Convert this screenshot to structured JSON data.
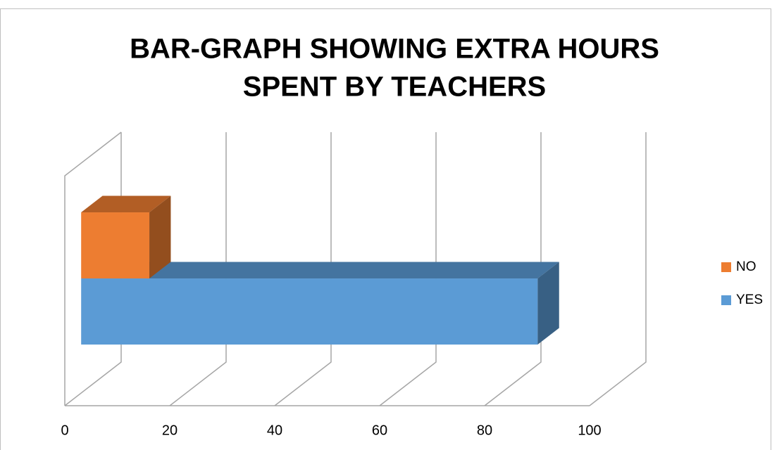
{
  "chart_data": {
    "type": "bar3d",
    "title": [
      "BAR-GRAPH SHOWING EXTRA HOURS",
      "SPENT BY TEACHERS"
    ],
    "orientation": "horizontal",
    "categories": [
      null
    ],
    "series": [
      {
        "name": "NO",
        "color": "#ed7d31",
        "values": [
          13
        ]
      },
      {
        "name": "YES",
        "color": "#5b9bd5",
        "values": [
          87
        ]
      }
    ],
    "xlim": [
      0,
      100
    ],
    "xticks": [
      0,
      20,
      40,
      60,
      80,
      100
    ],
    "grid": true,
    "legend": "right"
  }
}
